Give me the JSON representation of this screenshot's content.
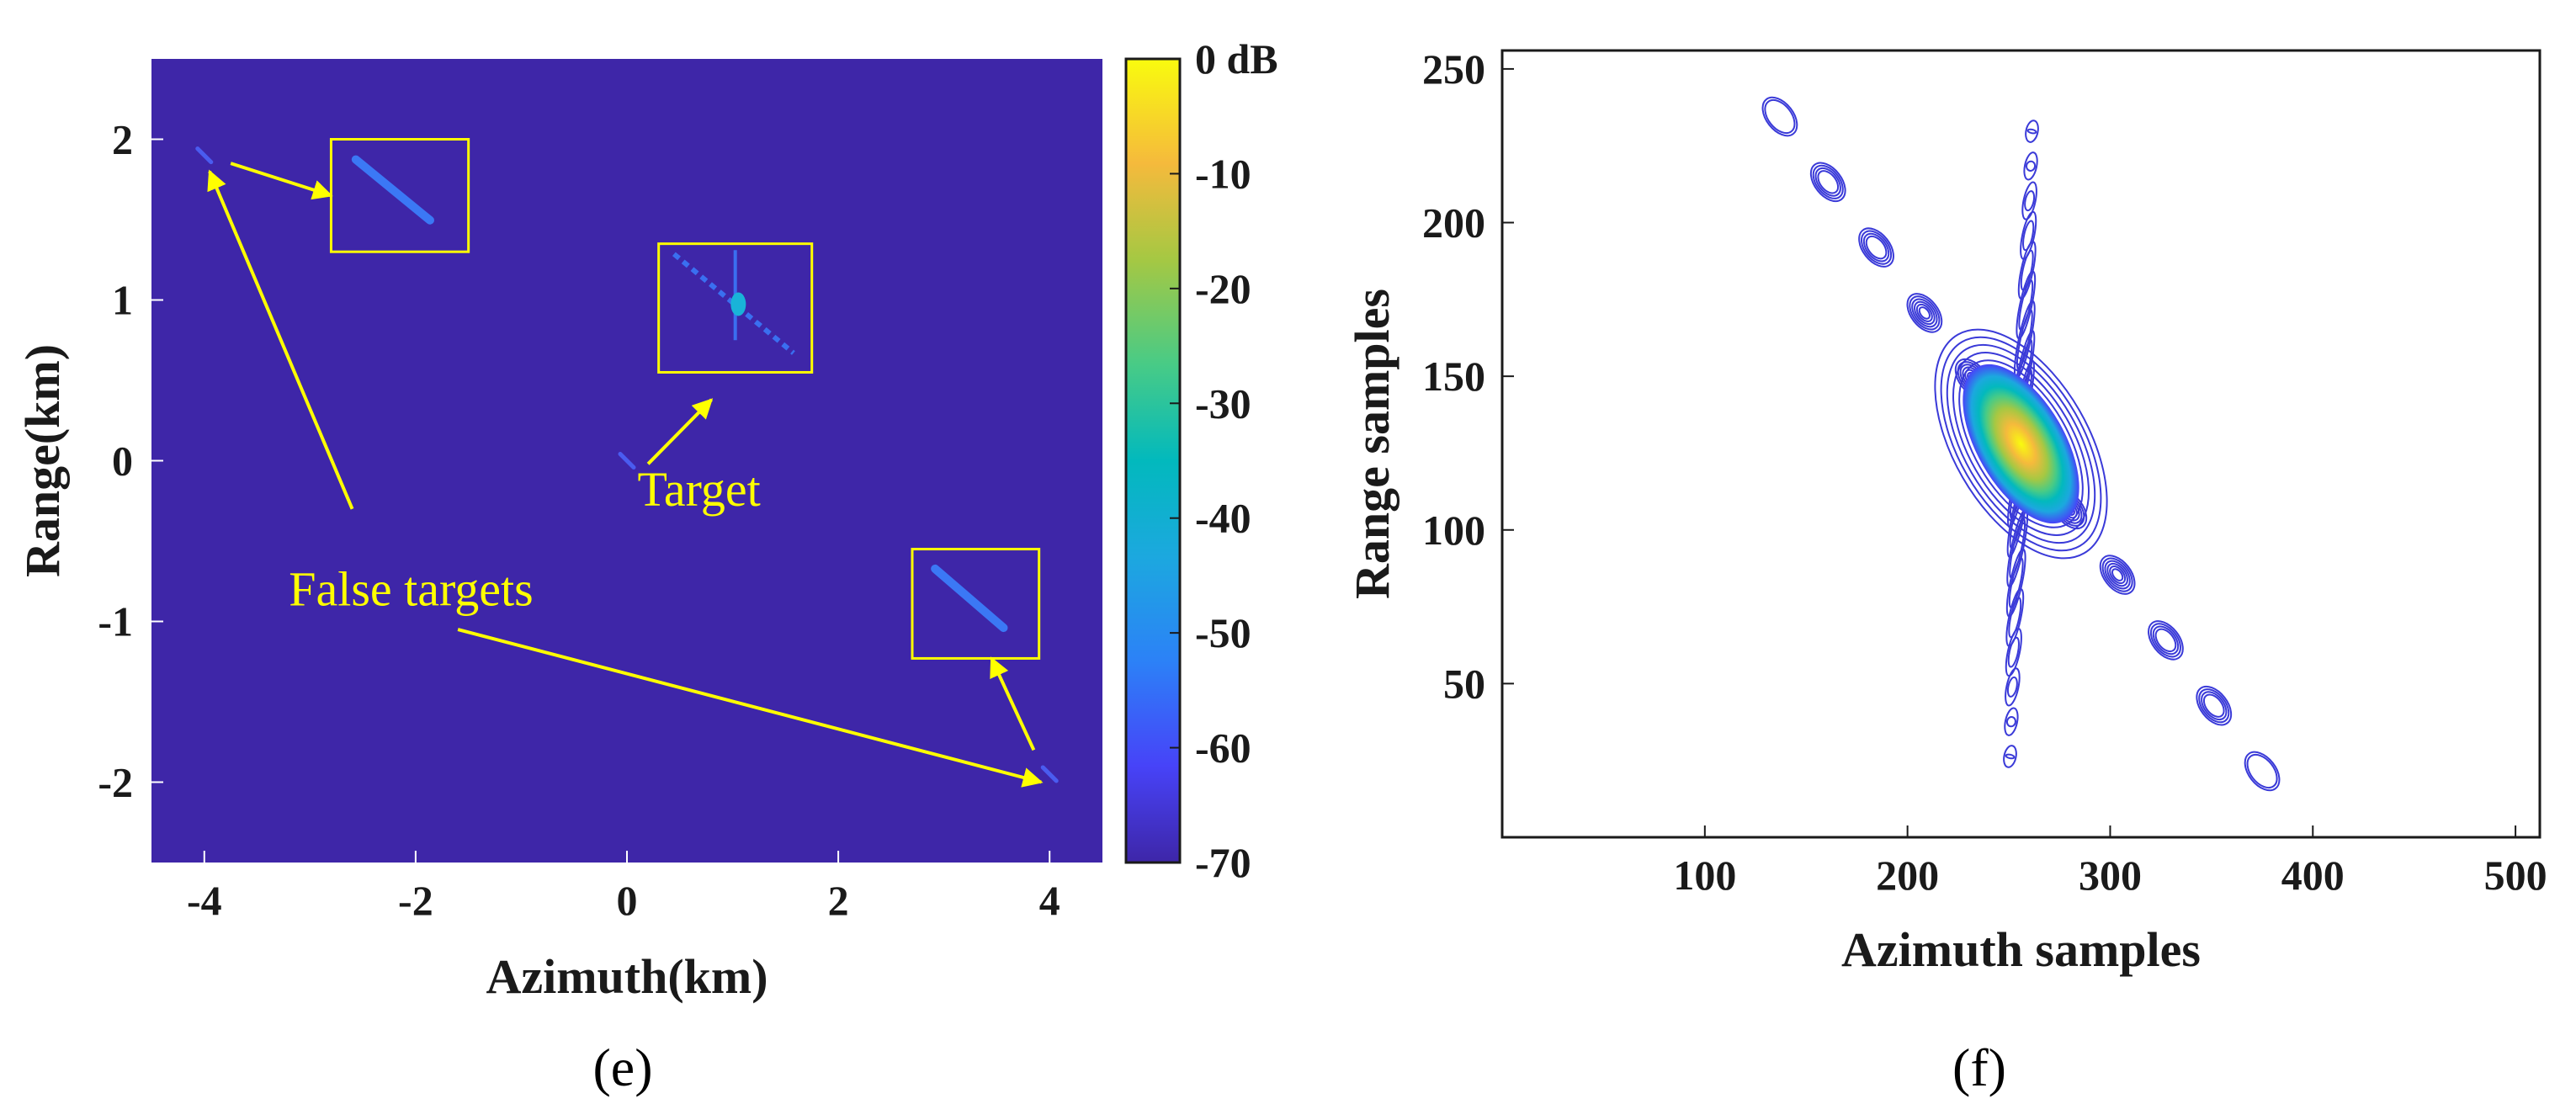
{
  "chart_data": [
    {
      "type": "heatmap",
      "caption": "(e)",
      "xlabel": "Azimuth(km)",
      "ylabel": "Range(km)",
      "xlim": [
        -4.5,
        4.5
      ],
      "ylim": [
        -2.5,
        2.5
      ],
      "xticks": [
        -4,
        -2,
        0,
        2,
        4
      ],
      "yticks": [
        -2,
        -1,
        0,
        1,
        2
      ],
      "colorbar": {
        "colormap": "parula",
        "range_db": [
          -70,
          0
        ],
        "ticks": [
          {
            "value": 0,
            "label": "0 dB"
          },
          {
            "value": -10,
            "label": "-10"
          },
          {
            "value": -20,
            "label": "-20"
          },
          {
            "value": -30,
            "label": "-30"
          },
          {
            "value": -40,
            "label": "-40"
          },
          {
            "value": -50,
            "label": "-50"
          },
          {
            "value": -60,
            "label": "-60"
          },
          {
            "value": -70,
            "label": "-70"
          }
        ]
      },
      "background_color": "#3e26a8",
      "targets": [
        {
          "role": "false",
          "x": -4.0,
          "y": 1.9
        },
        {
          "role": "true",
          "x": 0.0,
          "y": 0.0
        },
        {
          "role": "false",
          "x": 4.0,
          "y": -1.95
        }
      ],
      "zoom_boxes": [
        {
          "role": "false",
          "x_range": [
            -2.8,
            -1.5
          ],
          "y_range": [
            1.3,
            2.0
          ]
        },
        {
          "role": "true",
          "x_range": [
            0.3,
            1.75
          ],
          "y_range": [
            0.55,
            1.35
          ]
        },
        {
          "role": "false",
          "x_range": [
            2.7,
            3.9
          ],
          "y_range": [
            -1.23,
            -0.55
          ]
        }
      ],
      "annotations": [
        {
          "text": "Target",
          "x": 0.1,
          "y": -0.28
        },
        {
          "text": "False targets",
          "x": -3.2,
          "y": -0.9
        }
      ],
      "annotation_color": "#ffff00"
    },
    {
      "type": "contour",
      "caption": "(f)",
      "xlabel": "Azimuth samples",
      "ylabel": "Range samples",
      "xlim": [
        0,
        512
      ],
      "ylim": [
        0,
        256
      ],
      "xticks": [
        100,
        200,
        300,
        400,
        500
      ],
      "yticks": [
        50,
        100,
        150,
        200,
        250
      ],
      "peak": {
        "x": 256,
        "y": 128
      },
      "sidelobe_directions": [
        "diagonal (upper-left to lower-right)",
        "near-vertical"
      ],
      "colormap": "parula",
      "levels": 20
    }
  ]
}
